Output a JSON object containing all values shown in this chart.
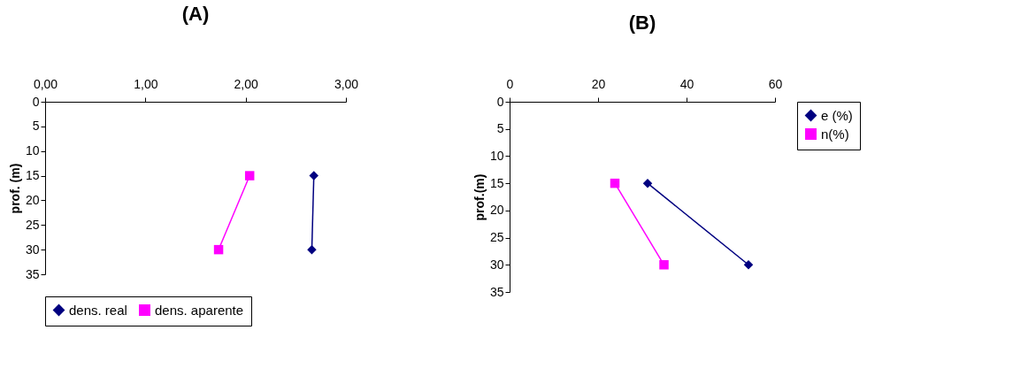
{
  "chart_data": [
    {
      "type": "line",
      "title": "(A)",
      "ylabel": "prof. (m)",
      "xlim": [
        0,
        3
      ],
      "xticks": [
        {
          "value": 0,
          "label": "0,00"
        },
        {
          "value": 1,
          "label": "1,00"
        },
        {
          "value": 2,
          "label": "2,00"
        },
        {
          "value": 3,
          "label": "3,00"
        }
      ],
      "ylim": [
        35,
        0
      ],
      "yticks": [
        0,
        5,
        10,
        15,
        20,
        25,
        30,
        35
      ],
      "grid": false,
      "legend": "bottom",
      "line_style": "solid",
      "series": [
        {
          "name": "dens. real",
          "color": "#000080",
          "marker": "diamond",
          "x": [
            2.68,
            2.66
          ],
          "values": [
            15,
            30
          ]
        },
        {
          "name": "dens. aparente",
          "color": "#ff00ff",
          "marker": "square",
          "x": [
            2.04,
            1.73
          ],
          "values": [
            15,
            30
          ]
        }
      ]
    },
    {
      "type": "line",
      "title": "(B)",
      "ylabel": "prof.(m)",
      "xlim": [
        0,
        60
      ],
      "xticks": [
        0,
        20,
        40,
        60
      ],
      "ylim": [
        35,
        0
      ],
      "yticks": [
        0,
        5,
        10,
        15,
        20,
        25,
        30,
        35
      ],
      "grid": false,
      "legend": "right",
      "line_style": "solid",
      "series": [
        {
          "name": "e (%)",
          "color": "#000080",
          "marker": "diamond",
          "x": [
            31.2,
            54.0
          ],
          "values": [
            15,
            30
          ]
        },
        {
          "name": "n(%)",
          "color": "#ff00ff",
          "marker": "square",
          "x": [
            23.8,
            34.9
          ],
          "values": [
            15,
            30
          ]
        }
      ]
    }
  ]
}
